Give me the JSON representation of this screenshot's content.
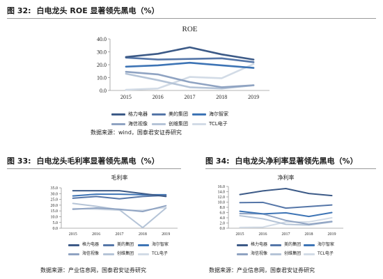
{
  "colors": {
    "geli": "#3c5a87",
    "midea": "#5576a8",
    "haier": "#3d74b5",
    "hisense": "#8fa3c2",
    "skyworth": "#b5c4d7",
    "tcl": "#d2dbe6",
    "axis": "#9a9a9a",
    "title_rule": "#9a9a9a"
  },
  "fig32": {
    "num": "图 32:",
    "title": "白电龙头 ROE 显著领先黑电（%）",
    "source": "数据来源：wind，国泰君安证券研究"
  },
  "fig33": {
    "num": "图 33:",
    "title": "白电龙头毛利率显著领先黑电（%）",
    "source": "数据来源：产业信息网，国泰君安证券研究"
  },
  "fig34": {
    "num": "图 34:",
    "title": "白电龙头净利率显著领先黑电（%）",
    "source": "数据来源：产业信息网，国泰君安证券研究"
  },
  "chart_data": [
    {
      "type": "line",
      "title": "ROE",
      "x": [
        "2015",
        "2016",
        "2017",
        "2018",
        "2019"
      ],
      "ylim": [
        0,
        40
      ],
      "yticks": [
        "0.0",
        "10.0",
        "20.0",
        "30.0",
        "40.0"
      ],
      "legend_placement": "bottom",
      "series": [
        {
          "name": "格力电器",
          "key": "geli",
          "values": [
            26.0,
            28.5,
            33.5,
            28.0,
            24.0
          ]
        },
        {
          "name": "美的集团",
          "key": "midea",
          "values": [
            25.5,
            24.0,
            24.5,
            25.0,
            22.0
          ]
        },
        {
          "name": "海尔智家",
          "key": "haier",
          "values": [
            18.5,
            19.5,
            21.5,
            19.5,
            17.5
          ]
        },
        {
          "name": "海信视像",
          "key": "hisense",
          "values": [
            14.5,
            12.5,
            6.5,
            2.5,
            4.0
          ]
        },
        {
          "name": "创维集团",
          "key": "skyworth",
          "values": [
            13.0,
            8.0,
            2.5,
            1.5,
            4.0
          ]
        },
        {
          "name": "TCL电子",
          "key": "tcl",
          "values": [
            0.5,
            1.5,
            10.5,
            9.5,
            20.5
          ]
        }
      ]
    },
    {
      "type": "line",
      "title": "毛利率",
      "x": [
        "2015",
        "2016",
        "2017",
        "2018",
        "2019"
      ],
      "ylim": [
        0,
        35
      ],
      "yticks": [
        "0.0",
        "5.0",
        "10.0",
        "15.0",
        "20.0",
        "25.0",
        "30.0",
        "35.0"
      ],
      "legend_placement": "bottom",
      "series": [
        {
          "name": "格力电器",
          "key": "geli",
          "values": [
            32.5,
            32.5,
            32.5,
            30.0,
            27.5
          ]
        },
        {
          "name": "美的集团",
          "key": "midea",
          "values": [
            26.0,
            27.5,
            25.5,
            27.5,
            28.5
          ]
        },
        {
          "name": "海尔智家",
          "key": "haier",
          "values": [
            28.0,
            29.5,
            29.5,
            29.0,
            29.0
          ]
        },
        {
          "name": "海信视像",
          "key": "hisense",
          "values": [
            16.5,
            17.5,
            16.5,
            14.5,
            19.5
          ]
        },
        {
          "name": "创维集团",
          "key": "skyworth",
          "values": [
            21.5,
            19.0,
            16.0,
            0.5,
            17.5
          ]
        },
        {
          "name": "TCL电子",
          "key": "tcl",
          "values": [
            17.0,
            16.5,
            15.5,
            15.5,
            18.0
          ]
        }
      ]
    },
    {
      "type": "line",
      "title": "净利率",
      "x": [
        "2015",
        "2016",
        "2017",
        "2018",
        "2019"
      ],
      "ylim": [
        0,
        16
      ],
      "yticks": [
        "0.0",
        "2.0",
        "4.0",
        "6.0",
        "8.0",
        "10.0",
        "12.0",
        "14.0",
        "16.0"
      ],
      "legend_placement": "bottom",
      "series": [
        {
          "name": "格力电器",
          "key": "geli",
          "values": [
            12.9,
            14.3,
            15.2,
            13.3,
            12.5
          ]
        },
        {
          "name": "美的集团",
          "key": "midea",
          "values": [
            9.8,
            9.9,
            7.7,
            8.3,
            8.9
          ]
        },
        {
          "name": "海尔智家",
          "key": "haier",
          "values": [
            6.5,
            5.5,
            5.9,
            4.5,
            6.0
          ]
        },
        {
          "name": "海信视像",
          "key": "hisense",
          "values": [
            5.6,
            5.5,
            3.0,
            1.5,
            2.6
          ]
        },
        {
          "name": "创维集团",
          "key": "skyworth",
          "values": [
            4.8,
            3.6,
            1.5,
            1.2,
            2.4
          ]
        },
        {
          "name": "TCL电子",
          "key": "tcl",
          "values": [
            0.3,
            0.4,
            2.4,
            2.4,
            4.0
          ]
        }
      ]
    }
  ]
}
